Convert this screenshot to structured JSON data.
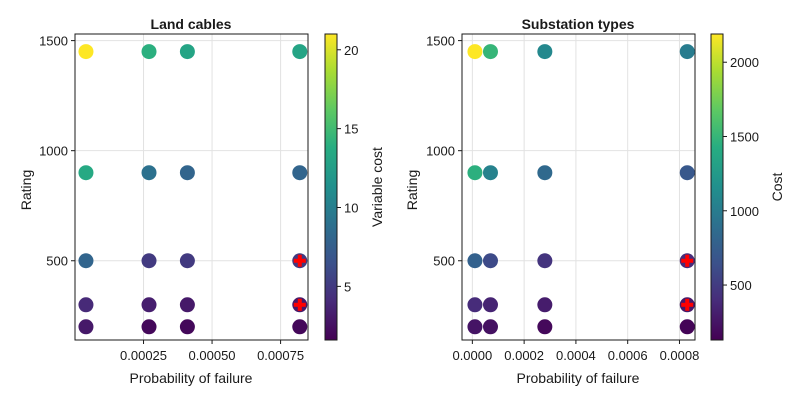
{
  "chart_data": [
    {
      "type": "scatter",
      "title": "Land cables",
      "xlabel": "Probability of failure",
      "ylabel": "Rating",
      "xlim": [
        0.0,
        0.00085
      ],
      "ylim": [
        140,
        1530
      ],
      "xticks": [
        0.00025,
        0.0005,
        0.00075
      ],
      "xtick_labels": [
        "0.00025",
        "0.00050",
        "0.00075"
      ],
      "yticks": [
        500,
        1000,
        1500
      ],
      "ytick_labels": [
        "500",
        "1000",
        "1500"
      ],
      "grid": true,
      "colorbar": {
        "label": "Variable cost",
        "range": [
          1.6,
          21
        ],
        "ticks": [
          5,
          10,
          15,
          20
        ],
        "tick_labels": [
          "5",
          "10",
          "15",
          "20"
        ],
        "colormap": "viridis"
      },
      "points": [
        {
          "x": 4e-05,
          "y": 1450,
          "c": 21
        },
        {
          "x": 0.00027,
          "y": 1450,
          "c": 14
        },
        {
          "x": 0.00041,
          "y": 1450,
          "c": 13
        },
        {
          "x": 0.00082,
          "y": 1450,
          "c": 13
        },
        {
          "x": 4e-05,
          "y": 900,
          "c": 13.5
        },
        {
          "x": 0.00027,
          "y": 900,
          "c": 9
        },
        {
          "x": 0.00041,
          "y": 900,
          "c": 8
        },
        {
          "x": 0.00082,
          "y": 900,
          "c": 8
        },
        {
          "x": 4e-05,
          "y": 500,
          "c": 8
        },
        {
          "x": 0.00027,
          "y": 500,
          "c": 5
        },
        {
          "x": 0.00041,
          "y": 500,
          "c": 5
        },
        {
          "x": 0.00082,
          "y": 500,
          "c": 5
        },
        {
          "x": 4e-05,
          "y": 300,
          "c": 4
        },
        {
          "x": 0.00027,
          "y": 300,
          "c": 3.3
        },
        {
          "x": 0.00041,
          "y": 300,
          "c": 3
        },
        {
          "x": 0.00082,
          "y": 300,
          "c": 3
        },
        {
          "x": 4e-05,
          "y": 200,
          "c": 3
        },
        {
          "x": 0.00027,
          "y": 200,
          "c": 2
        },
        {
          "x": 0.00041,
          "y": 200,
          "c": 2
        },
        {
          "x": 0.00082,
          "y": 200,
          "c": 2
        }
      ],
      "highlighted": [
        {
          "x": 0.00082,
          "y": 500
        },
        {
          "x": 0.00082,
          "y": 300
        }
      ],
      "highlight_color": "#ff0000"
    },
    {
      "type": "scatter",
      "title": "Substation types",
      "xlabel": "Probability of failure",
      "ylabel": "Rating",
      "xlim": [
        -4e-05,
        0.00086
      ],
      "ylim": [
        140,
        1530
      ],
      "xticks": [
        0.0,
        0.0002,
        0.0004,
        0.0006,
        0.0008
      ],
      "xtick_labels": [
        "0.0000",
        "0.0002",
        "0.0004",
        "0.0006",
        "0.0008"
      ],
      "yticks": [
        500,
        1000,
        1500
      ],
      "ytick_labels": [
        "500",
        "1000",
        "1500"
      ],
      "grid": true,
      "colorbar": {
        "label": "Cost",
        "range": [
          130,
          2190
        ],
        "ticks": [
          500,
          1000,
          1500,
          2000
        ],
        "tick_labels": [
          "500",
          "1000",
          "1500",
          "2000"
        ],
        "colormap": "viridis"
      },
      "points": [
        {
          "x": 1e-05,
          "y": 1450,
          "c": 2190
        },
        {
          "x": 7e-05,
          "y": 1450,
          "c": 1500
        },
        {
          "x": 0.00028,
          "y": 1450,
          "c": 1100
        },
        {
          "x": 0.00083,
          "y": 1450,
          "c": 1000
        },
        {
          "x": 1e-05,
          "y": 900,
          "c": 1450
        },
        {
          "x": 7e-05,
          "y": 900,
          "c": 1050
        },
        {
          "x": 0.00028,
          "y": 900,
          "c": 850
        },
        {
          "x": 0.00083,
          "y": 900,
          "c": 700
        },
        {
          "x": 1e-05,
          "y": 500,
          "c": 780
        },
        {
          "x": 7e-05,
          "y": 500,
          "c": 600
        },
        {
          "x": 0.00028,
          "y": 500,
          "c": 450
        },
        {
          "x": 0.00083,
          "y": 500,
          "c": 400
        },
        {
          "x": 1e-05,
          "y": 300,
          "c": 400
        },
        {
          "x": 7e-05,
          "y": 300,
          "c": 350
        },
        {
          "x": 0.00028,
          "y": 300,
          "c": 300
        },
        {
          "x": 0.00083,
          "y": 300,
          "c": 280
        },
        {
          "x": 1e-05,
          "y": 200,
          "c": 250
        },
        {
          "x": 7e-05,
          "y": 200,
          "c": 230
        },
        {
          "x": 0.00028,
          "y": 200,
          "c": 180
        },
        {
          "x": 0.00083,
          "y": 200,
          "c": 150
        }
      ],
      "highlighted": [
        {
          "x": 0.00083,
          "y": 500
        },
        {
          "x": 0.00083,
          "y": 300
        }
      ],
      "highlight_color": "#ff0000"
    }
  ]
}
